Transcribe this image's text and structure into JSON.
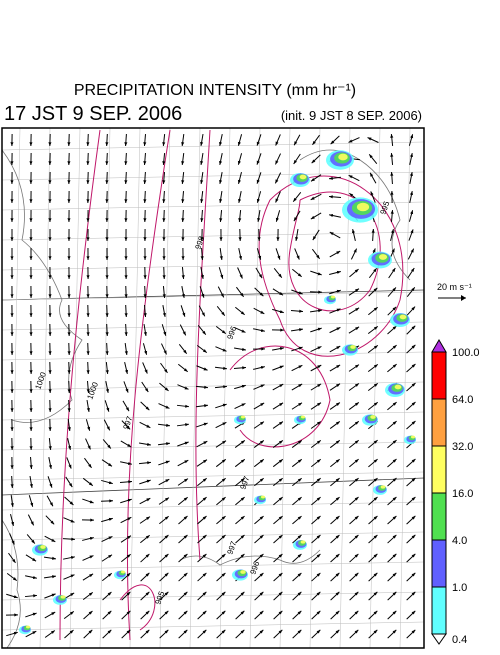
{
  "header": {
    "title": "PRECIPITATION INTENSITY (mm hr⁻¹)",
    "time": "17 JST 9 SEP. 2006",
    "init": "(init. 9 JST 8 SEP. 2006)"
  },
  "reference_vector": {
    "label": "20 m s⁻¹"
  },
  "colorbar": {
    "labels": [
      "100.0",
      "64.0",
      "32.0",
      "16.0",
      "4.0",
      "1.0",
      "0.4"
    ],
    "over_color": "#b030e0",
    "colors": [
      "#ff0000",
      "#ffa040",
      "#ffff60",
      "#50e050",
      "#6060ff",
      "#60ffff"
    ],
    "under_color": "#ffffff"
  },
  "contour_labels": [
    "1000",
    "1000",
    "998",
    "996",
    "995",
    "997",
    "997",
    "997",
    "996",
    "995"
  ]
}
